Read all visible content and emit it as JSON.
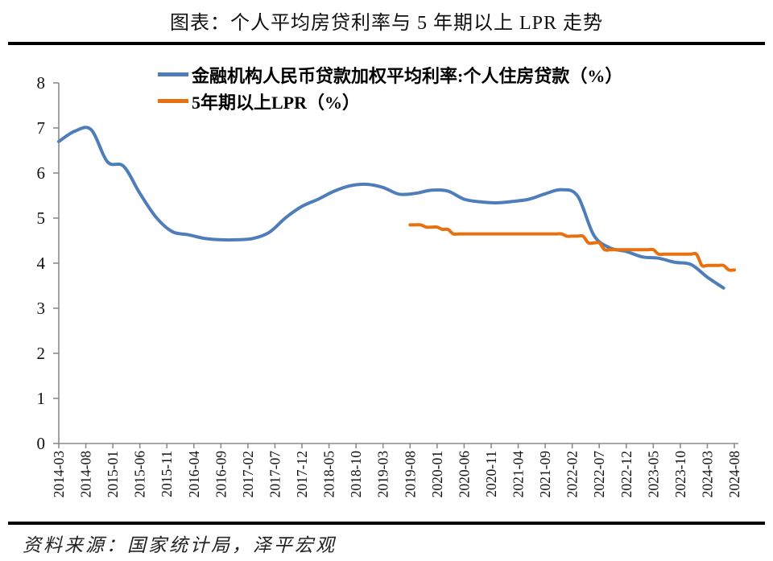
{
  "title": "图表：个人平均房贷利率与 5 年期以上 LPR 走势",
  "source_note": "资料来源：国家统计局，泽平宏观",
  "colors": {
    "series_mortgage": "#4E7DBA",
    "series_lpr": "#E8700E",
    "axis": "#8C8C8C",
    "rule": "#000000"
  },
  "chart_data": {
    "type": "line",
    "title": "图表：个人平均房贷利率与 5 年期以上 LPR 走势",
    "xlabel": "",
    "ylabel": "",
    "ylim": [
      0,
      8
    ],
    "y_ticks": [
      0,
      1,
      2,
      3,
      4,
      5,
      6,
      7,
      8
    ],
    "x_ticks": [
      "2014-03",
      "2014-08",
      "2015-01",
      "2015-06",
      "2015-11",
      "2016-04",
      "2016-09",
      "2017-02",
      "2017-07",
      "2017-12",
      "2018-05",
      "2018-10",
      "2019-03",
      "2019-08",
      "2020-01",
      "2020-06",
      "2020-11",
      "2021-04",
      "2021-09",
      "2022-02",
      "2022-07",
      "2022-12",
      "2023-05",
      "2023-10",
      "2024-03",
      "2024-08"
    ],
    "x_range": [
      "2014-03",
      "2024-08"
    ],
    "grid": false,
    "legend_position": "top-inside",
    "series": [
      {
        "name": "金融机构人民币贷款加权平均利率:个人住房贷款（%）",
        "color": "#4E7DBA",
        "frequency": "quarterly",
        "style": "smooth",
        "points": [
          [
            "2014-03",
            6.7
          ],
          [
            "2014-06",
            6.93
          ],
          [
            "2014-09",
            6.96
          ],
          [
            "2014-12",
            6.25
          ],
          [
            "2015-03",
            6.15
          ],
          [
            "2015-06",
            5.55
          ],
          [
            "2015-09",
            5.02
          ],
          [
            "2015-12",
            4.7
          ],
          [
            "2016-03",
            4.63
          ],
          [
            "2016-06",
            4.55
          ],
          [
            "2016-09",
            4.52
          ],
          [
            "2016-12",
            4.52
          ],
          [
            "2017-03",
            4.55
          ],
          [
            "2017-06",
            4.69
          ],
          [
            "2017-09",
            5.01
          ],
          [
            "2017-12",
            5.26
          ],
          [
            "2018-03",
            5.42
          ],
          [
            "2018-06",
            5.6
          ],
          [
            "2018-09",
            5.72
          ],
          [
            "2018-12",
            5.75
          ],
          [
            "2019-03",
            5.68
          ],
          [
            "2019-06",
            5.53
          ],
          [
            "2019-09",
            5.55
          ],
          [
            "2019-12",
            5.62
          ],
          [
            "2020-03",
            5.6
          ],
          [
            "2020-06",
            5.42
          ],
          [
            "2020-09",
            5.36
          ],
          [
            "2020-12",
            5.34
          ],
          [
            "2021-03",
            5.37
          ],
          [
            "2021-06",
            5.42
          ],
          [
            "2021-09",
            5.54
          ],
          [
            "2021-12",
            5.63
          ],
          [
            "2022-03",
            5.49
          ],
          [
            "2022-06",
            4.62
          ],
          [
            "2022-09",
            4.34
          ],
          [
            "2022-12",
            4.26
          ],
          [
            "2023-03",
            4.14
          ],
          [
            "2023-06",
            4.11
          ],
          [
            "2023-09",
            4.02
          ],
          [
            "2023-12",
            3.97
          ],
          [
            "2024-03",
            3.69
          ],
          [
            "2024-06",
            3.45
          ]
        ]
      },
      {
        "name": "5年期以上LPR（%）",
        "color": "#E8700E",
        "frequency": "monthly",
        "style": "smooth-steps",
        "step_changes": [
          [
            "2019-08",
            4.85
          ],
          [
            "2019-11",
            4.8
          ],
          [
            "2020-02",
            4.75
          ],
          [
            "2020-04",
            4.65
          ],
          [
            "2022-01",
            4.6
          ],
          [
            "2022-05",
            4.45
          ],
          [
            "2022-08",
            4.3
          ],
          [
            "2023-06",
            4.2
          ],
          [
            "2024-02",
            3.95
          ],
          [
            "2024-07",
            3.85
          ]
        ],
        "end_month": "2024-08"
      }
    ]
  }
}
